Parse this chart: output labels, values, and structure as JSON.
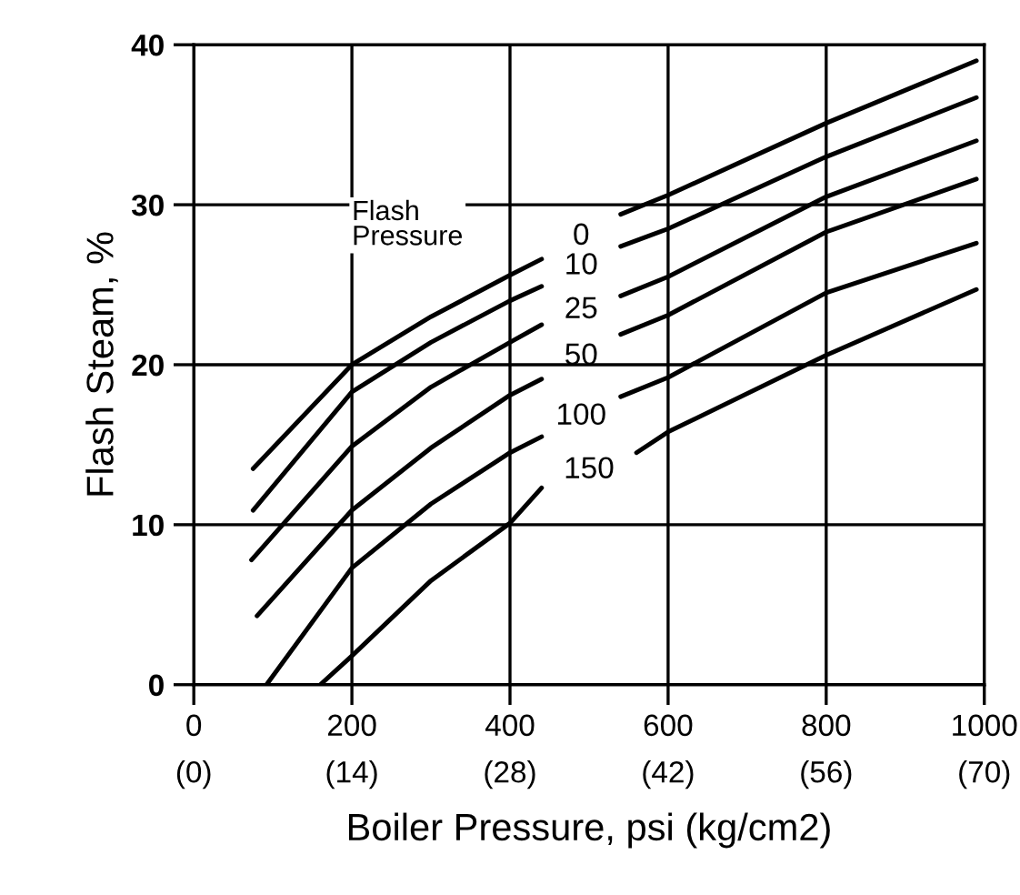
{
  "chart_data": {
    "type": "line",
    "xlabel": "Boiler Pressure, psi (kg/cm2)",
    "ylabel": "Flash Steam, %",
    "legend_title": "Flash\nPressure",
    "legend": false,
    "grid": true,
    "marker": "none",
    "line_style": "solid",
    "xlim": [
      0,
      1000
    ],
    "ylim": [
      0,
      40
    ],
    "xticks": [
      0,
      200,
      400,
      600,
      800,
      1000
    ],
    "annotations": [
      "(0)",
      "(14)",
      "(28)",
      "(42)",
      "(56)",
      "(70)"
    ],
    "yticks": [
      0,
      10,
      20,
      30,
      40
    ],
    "series": [
      {
        "name": "0",
        "color": "#000000",
        "x": [
          75,
          200,
          300,
          400,
          440,
          490,
          540,
          600,
          800,
          990
        ],
        "values": [
          13.5,
          20.0,
          23.0,
          25.6,
          26.6,
          null,
          29.4,
          30.6,
          35.1,
          39.0
        ]
      },
      {
        "name": "10",
        "color": "#000000",
        "x": [
          75,
          200,
          300,
          400,
          440,
          490,
          540,
          600,
          800,
          990
        ],
        "values": [
          10.9,
          18.3,
          21.4,
          24.0,
          24.9,
          null,
          27.4,
          28.5,
          33.0,
          36.7
        ]
      },
      {
        "name": "25",
        "color": "#000000",
        "x": [
          73,
          200,
          300,
          400,
          440,
          490,
          540,
          600,
          800,
          990
        ],
        "values": [
          7.8,
          14.9,
          18.6,
          21.4,
          22.5,
          null,
          24.3,
          25.5,
          30.5,
          34.0
        ]
      },
      {
        "name": "50",
        "color": "#000000",
        "x": [
          80,
          200,
          300,
          400,
          440,
          490,
          540,
          600,
          800,
          990
        ],
        "values": [
          4.3,
          10.9,
          14.8,
          18.1,
          19.1,
          null,
          21.9,
          23.1,
          28.3,
          31.6
        ]
      },
      {
        "name": "100",
        "color": "#000000",
        "x": [
          92,
          200,
          300,
          400,
          440,
          490,
          540,
          600,
          800,
          990
        ],
        "values": [
          0,
          7.3,
          11.3,
          14.5,
          15.5,
          null,
          18.0,
          19.2,
          24.5,
          27.6
        ]
      },
      {
        "name": "150",
        "color": "#000000",
        "x": [
          160,
          200,
          300,
          400,
          440,
          500,
          560,
          600,
          800,
          990
        ],
        "values": [
          0,
          1.8,
          6.5,
          10.1,
          12.3,
          null,
          14.5,
          15.8,
          20.6,
          24.7
        ]
      }
    ]
  }
}
